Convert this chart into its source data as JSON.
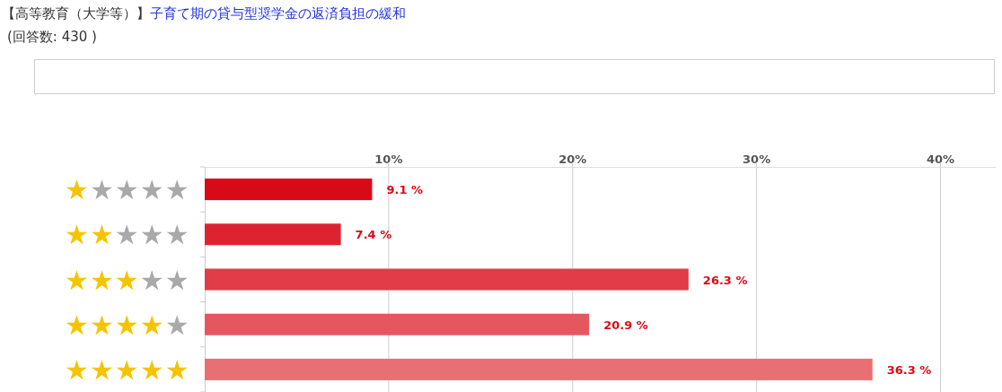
{
  "chart_data": {
    "type": "bar",
    "orientation": "horizontal",
    "title": "子育て期の貸与型奨学金の返済負担の緩和",
    "subtitle": "(回答数: 430 )",
    "annotations": [
      "【高等教育（大学等）】"
    ],
    "categories": [
      "★★★★★",
      "★★★★★",
      "★★★★★",
      "★★★★★",
      "★★★★★"
    ],
    "values": [
      9.1,
      7.4,
      26.3,
      20.9,
      36.3
    ],
    "value_labels": [
      "9.1 %",
      "7.4 %",
      "26.3 %",
      "20.9 %",
      "36.3 %"
    ],
    "colors": [
      "#d90a17",
      "#dd2330",
      "#e13c47",
      "#e5575f",
      "#e86f74"
    ],
    "xlim": [
      0,
      43
    ],
    "xticks": [
      {
        "value": 10,
        "label": "10%"
      },
      {
        "value": 20,
        "label": "20%"
      },
      {
        "value": 30,
        "label": "30%"
      },
      {
        "value": 40,
        "label": "40%"
      }
    ],
    "grid": "x"
  }
}
